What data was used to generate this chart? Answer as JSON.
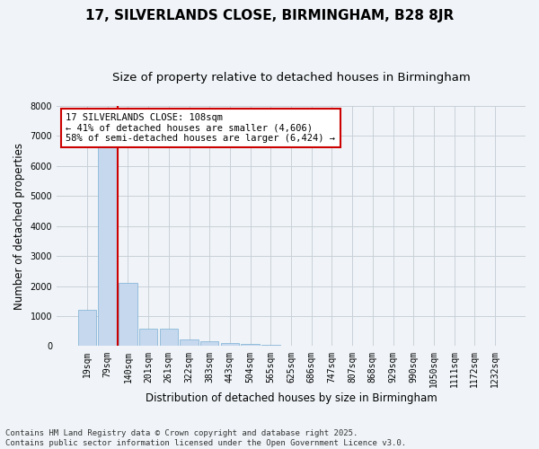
{
  "title": "17, SILVERLANDS CLOSE, BIRMINGHAM, B28 8JR",
  "subtitle": "Size of property relative to detached houses in Birmingham",
  "xlabel": "Distribution of detached houses by size in Birmingham",
  "ylabel": "Number of detached properties",
  "annotation_title": "17 SILVERLANDS CLOSE: 108sqm",
  "annotation_line1": "← 41% of detached houses are smaller (4,606)",
  "annotation_line2": "58% of semi-detached houses are larger (6,424) →",
  "bar_color": "#c5d8ee",
  "bar_edge_color": "#7aafd4",
  "vline_color": "#cc0000",
  "annotation_box_color": "#cc0000",
  "grid_color": "#c8d0d8",
  "background_color": "#f0f4f8",
  "categories": [
    "19sqm",
    "79sqm",
    "140sqm",
    "201sqm",
    "261sqm",
    "322sqm",
    "383sqm",
    "443sqm",
    "504sqm",
    "565sqm",
    "625sqm",
    "686sqm",
    "747sqm",
    "807sqm",
    "868sqm",
    "929sqm",
    "990sqm",
    "1050sqm",
    "1111sqm",
    "1172sqm",
    "1232sqm"
  ],
  "values": [
    1200,
    6700,
    2100,
    580,
    580,
    230,
    150,
    100,
    60,
    40,
    20,
    8,
    4,
    2,
    1,
    1,
    0,
    0,
    0,
    0,
    0
  ],
  "ylim": [
    0,
    8000
  ],
  "yticks": [
    0,
    1000,
    2000,
    3000,
    4000,
    5000,
    6000,
    7000,
    8000
  ],
  "vline_x": 1.5,
  "footer": "Contains HM Land Registry data © Crown copyright and database right 2025.\nContains public sector information licensed under the Open Government Licence v3.0.",
  "title_fontsize": 11,
  "subtitle_fontsize": 9.5,
  "axis_fontsize": 8.5,
  "tick_fontsize": 7,
  "ann_fontsize": 7.5,
  "footer_fontsize": 6.5
}
